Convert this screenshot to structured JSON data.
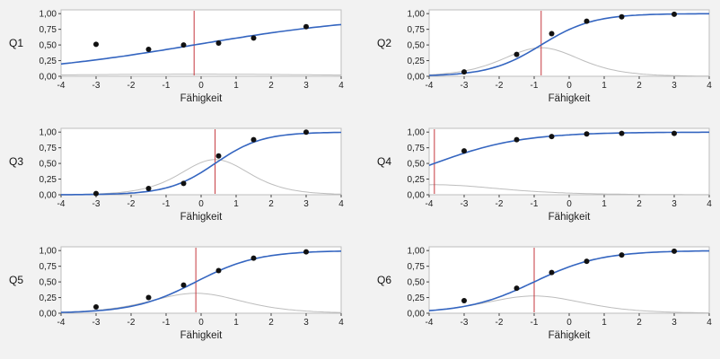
{
  "window": {
    "background": "#f2f2f2"
  },
  "style": {
    "plot_bg": "#ffffff",
    "frame_color": "#bdbdbd",
    "tick_color": "#444444",
    "curve_color": "#3465c0",
    "info_curve_color": "#bdbdbd",
    "red_line_color": "#c5373d",
    "point_color": "#111111"
  },
  "axis": {
    "xlabel": "Fähigkeit",
    "xlim": [
      -4,
      4
    ],
    "ylim": [
      0,
      1.05
    ],
    "x_ticks": [
      -4,
      -3,
      -2,
      -1,
      0,
      1,
      2,
      3,
      4
    ],
    "y_ticks": [
      0,
      0.25,
      0.5,
      0.75,
      1
    ],
    "y_tick_labels": [
      "0,00",
      "0,25",
      "0,50",
      "0,75",
      "1,00"
    ],
    "grid": false,
    "legend": "none"
  },
  "chart_data": [
    {
      "type": "line",
      "label": "Q1",
      "xlabel": "Fähigkeit",
      "xlim": [
        -4,
        4
      ],
      "ylim": [
        0,
        1.05
      ],
      "blue_curve": {
        "model": "logistic",
        "a": 0.37,
        "b": -0.2
      },
      "gray_curve": {
        "model": "item-information",
        "formula": "a^2*P*(1-P)",
        "peak": 0.03
      },
      "red_vline_x": -0.2,
      "points": [
        [
          -3,
          0.51
        ],
        [
          -1.5,
          0.43
        ],
        [
          -0.5,
          0.5
        ],
        [
          0.5,
          0.53
        ],
        [
          1.5,
          0.61
        ],
        [
          3,
          0.79
        ]
      ]
    },
    {
      "type": "line",
      "label": "Q2",
      "xlabel": "Fähigkeit",
      "xlim": [
        -4,
        4
      ],
      "ylim": [
        0,
        1.05
      ],
      "blue_curve": {
        "model": "logistic",
        "a": 1.35,
        "b": -0.8
      },
      "gray_curve": {
        "model": "item-information",
        "formula": "a^2*P*(1-P)",
        "peak": 0.46
      },
      "red_vline_x": -0.8,
      "points": [
        [
          -3,
          0.07
        ],
        [
          -1.5,
          0.35
        ],
        [
          -0.5,
          0.68
        ],
        [
          0.5,
          0.88
        ],
        [
          1.5,
          0.95
        ],
        [
          3,
          0.99
        ]
      ]
    },
    {
      "type": "line",
      "label": "Q3",
      "xlabel": "Fähigkeit",
      "xlim": [
        -4,
        4
      ],
      "ylim": [
        0,
        1.05
      ],
      "blue_curve": {
        "model": "logistic",
        "a": 1.5,
        "b": 0.4
      },
      "gray_curve": {
        "model": "item-information",
        "formula": "a^2*P*(1-P)",
        "peak": 0.56
      },
      "red_vline_x": 0.4,
      "points": [
        [
          -3,
          0.02
        ],
        [
          -1.5,
          0.1
        ],
        [
          -0.5,
          0.18
        ],
        [
          0.5,
          0.62
        ],
        [
          1.5,
          0.88
        ],
        [
          3,
          1.0
        ]
      ]
    },
    {
      "type": "line",
      "label": "Q4",
      "xlabel": "Fähigkeit",
      "xlim": [
        -4,
        4
      ],
      "ylim": [
        0,
        1.05
      ],
      "blue_curve": {
        "model": "logistic",
        "a": 0.8,
        "b": -3.85
      },
      "gray_curve": {
        "model": "item-information",
        "formula": "a^2*P*(1-P)",
        "peak": 0.16
      },
      "red_vline_x": -3.85,
      "points": [
        [
          -3,
          0.7
        ],
        [
          -1.5,
          0.88
        ],
        [
          -0.5,
          0.93
        ],
        [
          0.5,
          0.97
        ],
        [
          1.5,
          0.98
        ],
        [
          3,
          0.98
        ]
      ]
    },
    {
      "type": "line",
      "label": "Q5",
      "xlabel": "Fähigkeit",
      "xlim": [
        -4,
        4
      ],
      "ylim": [
        0,
        1.05
      ],
      "blue_curve": {
        "model": "logistic",
        "a": 1.13,
        "b": -0.15
      },
      "gray_curve": {
        "model": "item-information",
        "formula": "a^2*P*(1-P)",
        "peak": 0.32
      },
      "red_vline_x": -0.15,
      "points": [
        [
          -3,
          0.1
        ],
        [
          -1.5,
          0.25
        ],
        [
          -0.5,
          0.45
        ],
        [
          0.5,
          0.68
        ],
        [
          1.5,
          0.88
        ],
        [
          3,
          0.98
        ]
      ]
    },
    {
      "type": "line",
      "label": "Q6",
      "xlabel": "Fähigkeit",
      "xlim": [
        -4,
        4
      ],
      "ylim": [
        0,
        1.05
      ],
      "blue_curve": {
        "model": "logistic",
        "a": 1.05,
        "b": -1.0
      },
      "gray_curve": {
        "model": "item-information",
        "formula": "a^2*P*(1-P)",
        "peak": 0.28
      },
      "red_vline_x": -1.0,
      "points": [
        [
          -3,
          0.2
        ],
        [
          -1.5,
          0.4
        ],
        [
          -0.5,
          0.65
        ],
        [
          0.5,
          0.83
        ],
        [
          1.5,
          0.93
        ],
        [
          3,
          0.99
        ]
      ]
    }
  ]
}
